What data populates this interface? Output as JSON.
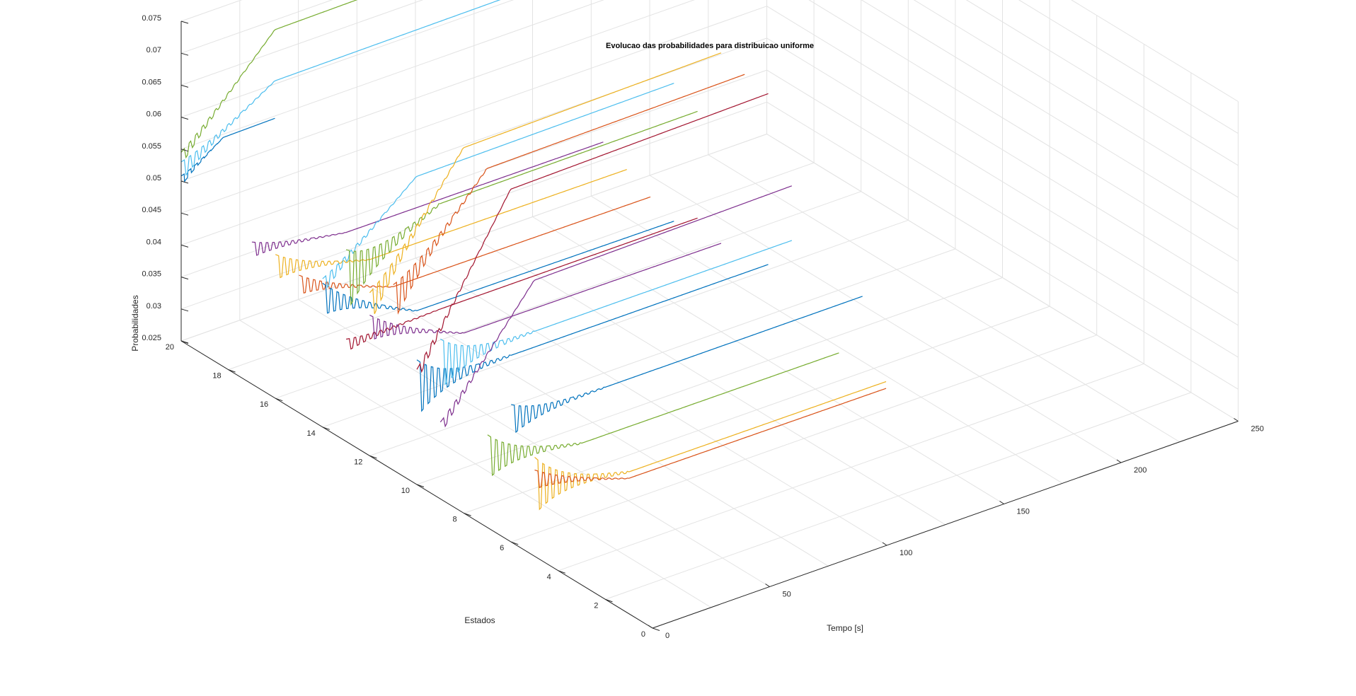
{
  "chart_data": {
    "type": "line",
    "view": "3d",
    "title": "Evolucao das probabilidades para distribuicao uniforme",
    "xlabel": "Estados",
    "ylabel": "Tempo [s]",
    "zlabel": "Probabilidades",
    "xlim": [
      0,
      20
    ],
    "ylim": [
      0,
      250
    ],
    "zlim": [
      0.025,
      0.075
    ],
    "x_ticks": [
      0,
      2,
      4,
      6,
      8,
      10,
      12,
      14,
      16,
      18,
      20
    ],
    "y_ticks": [
      0,
      50,
      100,
      150,
      200,
      250
    ],
    "z_ticks": [
      0.025,
      0.03,
      0.035,
      0.04,
      0.045,
      0.05,
      0.055,
      0.06,
      0.065,
      0.07,
      0.075
    ],
    "x_tick_labels": [
      "0",
      "2",
      "4",
      "6",
      "8",
      "10",
      "12",
      "14",
      "16",
      "18",
      "20"
    ],
    "y_tick_labels": [
      "0",
      "50",
      "100",
      "150",
      "200",
      "250"
    ],
    "z_tick_labels": [
      "0.025",
      "0.03",
      "0.035",
      "0.04",
      "0.045",
      "0.05",
      "0.055",
      "0.06",
      "0.065",
      "0.07",
      "0.075"
    ],
    "grid": true,
    "legend": "none",
    "series": [
      {
        "state": 20,
        "color": "#0072BD",
        "t_end": 40,
        "p_start": 0.05,
        "p_final": 0.0545,
        "osc": 0.0008
      },
      {
        "state": 20,
        "color": "#77AC30",
        "t_end": 150,
        "p_start": 0.0535,
        "p_final": 0.0685,
        "osc": 0.001
      },
      {
        "state": 20,
        "color": "#4DBEEE",
        "t_end": 150,
        "p_start": 0.0515,
        "p_final": 0.0605,
        "osc": 0.0015
      },
      {
        "state": 17,
        "color": "#7E2F8E",
        "t_end": 150,
        "p_start": 0.046,
        "p_final": 0.0435,
        "osc": 0.0012
      },
      {
        "state": 16,
        "color": "#EDB120",
        "t_end": 150,
        "p_start": 0.0455,
        "p_final": 0.0415,
        "osc": 0.002
      },
      {
        "state": 15,
        "color": "#D95319",
        "t_end": 150,
        "p_start": 0.045,
        "p_final": 0.0395,
        "osc": 0.0015
      },
      {
        "state": 14,
        "color": "#0072BD",
        "t_end": 150,
        "p_start": 0.045,
        "p_final": 0.038,
        "osc": 0.0025
      },
      {
        "state": 14,
        "color": "#4DBEEE",
        "t_end": 150,
        "p_start": 0.047,
        "p_final": 0.059,
        "osc": 0.0012
      },
      {
        "state": 13,
        "color": "#A2142F",
        "t_end": 150,
        "p_start": 0.04,
        "p_final": 0.0405,
        "osc": 0.001
      },
      {
        "state": 13,
        "color": "#77AC30",
        "t_end": 150,
        "p_start": 0.05,
        "p_final": 0.057,
        "osc": 0.005
      },
      {
        "state": 12,
        "color": "#7E2F8E",
        "t_end": 150,
        "p_start": 0.045,
        "p_final": 0.039,
        "osc": 0.002
      },
      {
        "state": 12,
        "color": "#EDB120",
        "t_end": 150,
        "p_start": 0.048,
        "p_final": 0.068,
        "osc": 0.0025
      },
      {
        "state": 11,
        "color": "#D95319",
        "t_end": 150,
        "p_start": 0.051,
        "p_final": 0.067,
        "osc": 0.003
      },
      {
        "state": 10,
        "color": "#0072BD",
        "t_end": 150,
        "p_start": 0.04,
        "p_final": 0.04,
        "osc": 0.0045
      },
      {
        "state": 10,
        "color": "#A2142F",
        "t_end": 150,
        "p_start": 0.042,
        "p_final": 0.066,
        "osc": 0.001
      },
      {
        "state": 9,
        "color": "#4DBEEE",
        "t_end": 150,
        "p_start": 0.046,
        "p_final": 0.046,
        "osc": 0.004
      },
      {
        "state": 9,
        "color": "#7E2F8E",
        "t_end": 150,
        "p_start": 0.036,
        "p_final": 0.054,
        "osc": 0.001
      },
      {
        "state": 7,
        "color": "#77AC30",
        "t_end": 150,
        "p_start": 0.036,
        "p_final": 0.033,
        "osc": 0.0035
      },
      {
        "state": 6,
        "color": "#0072BD",
        "t_end": 150,
        "p_start": 0.044,
        "p_final": 0.044,
        "osc": 0.0025
      },
      {
        "state": 5,
        "color": "#EDB120",
        "t_end": 150,
        "p_start": 0.036,
        "p_final": 0.033,
        "osc": 0.0045
      },
      {
        "state": 5,
        "color": "#D95319",
        "t_end": 150,
        "p_start": 0.037,
        "p_final": 0.032,
        "osc": 0.0015
      }
    ]
  }
}
